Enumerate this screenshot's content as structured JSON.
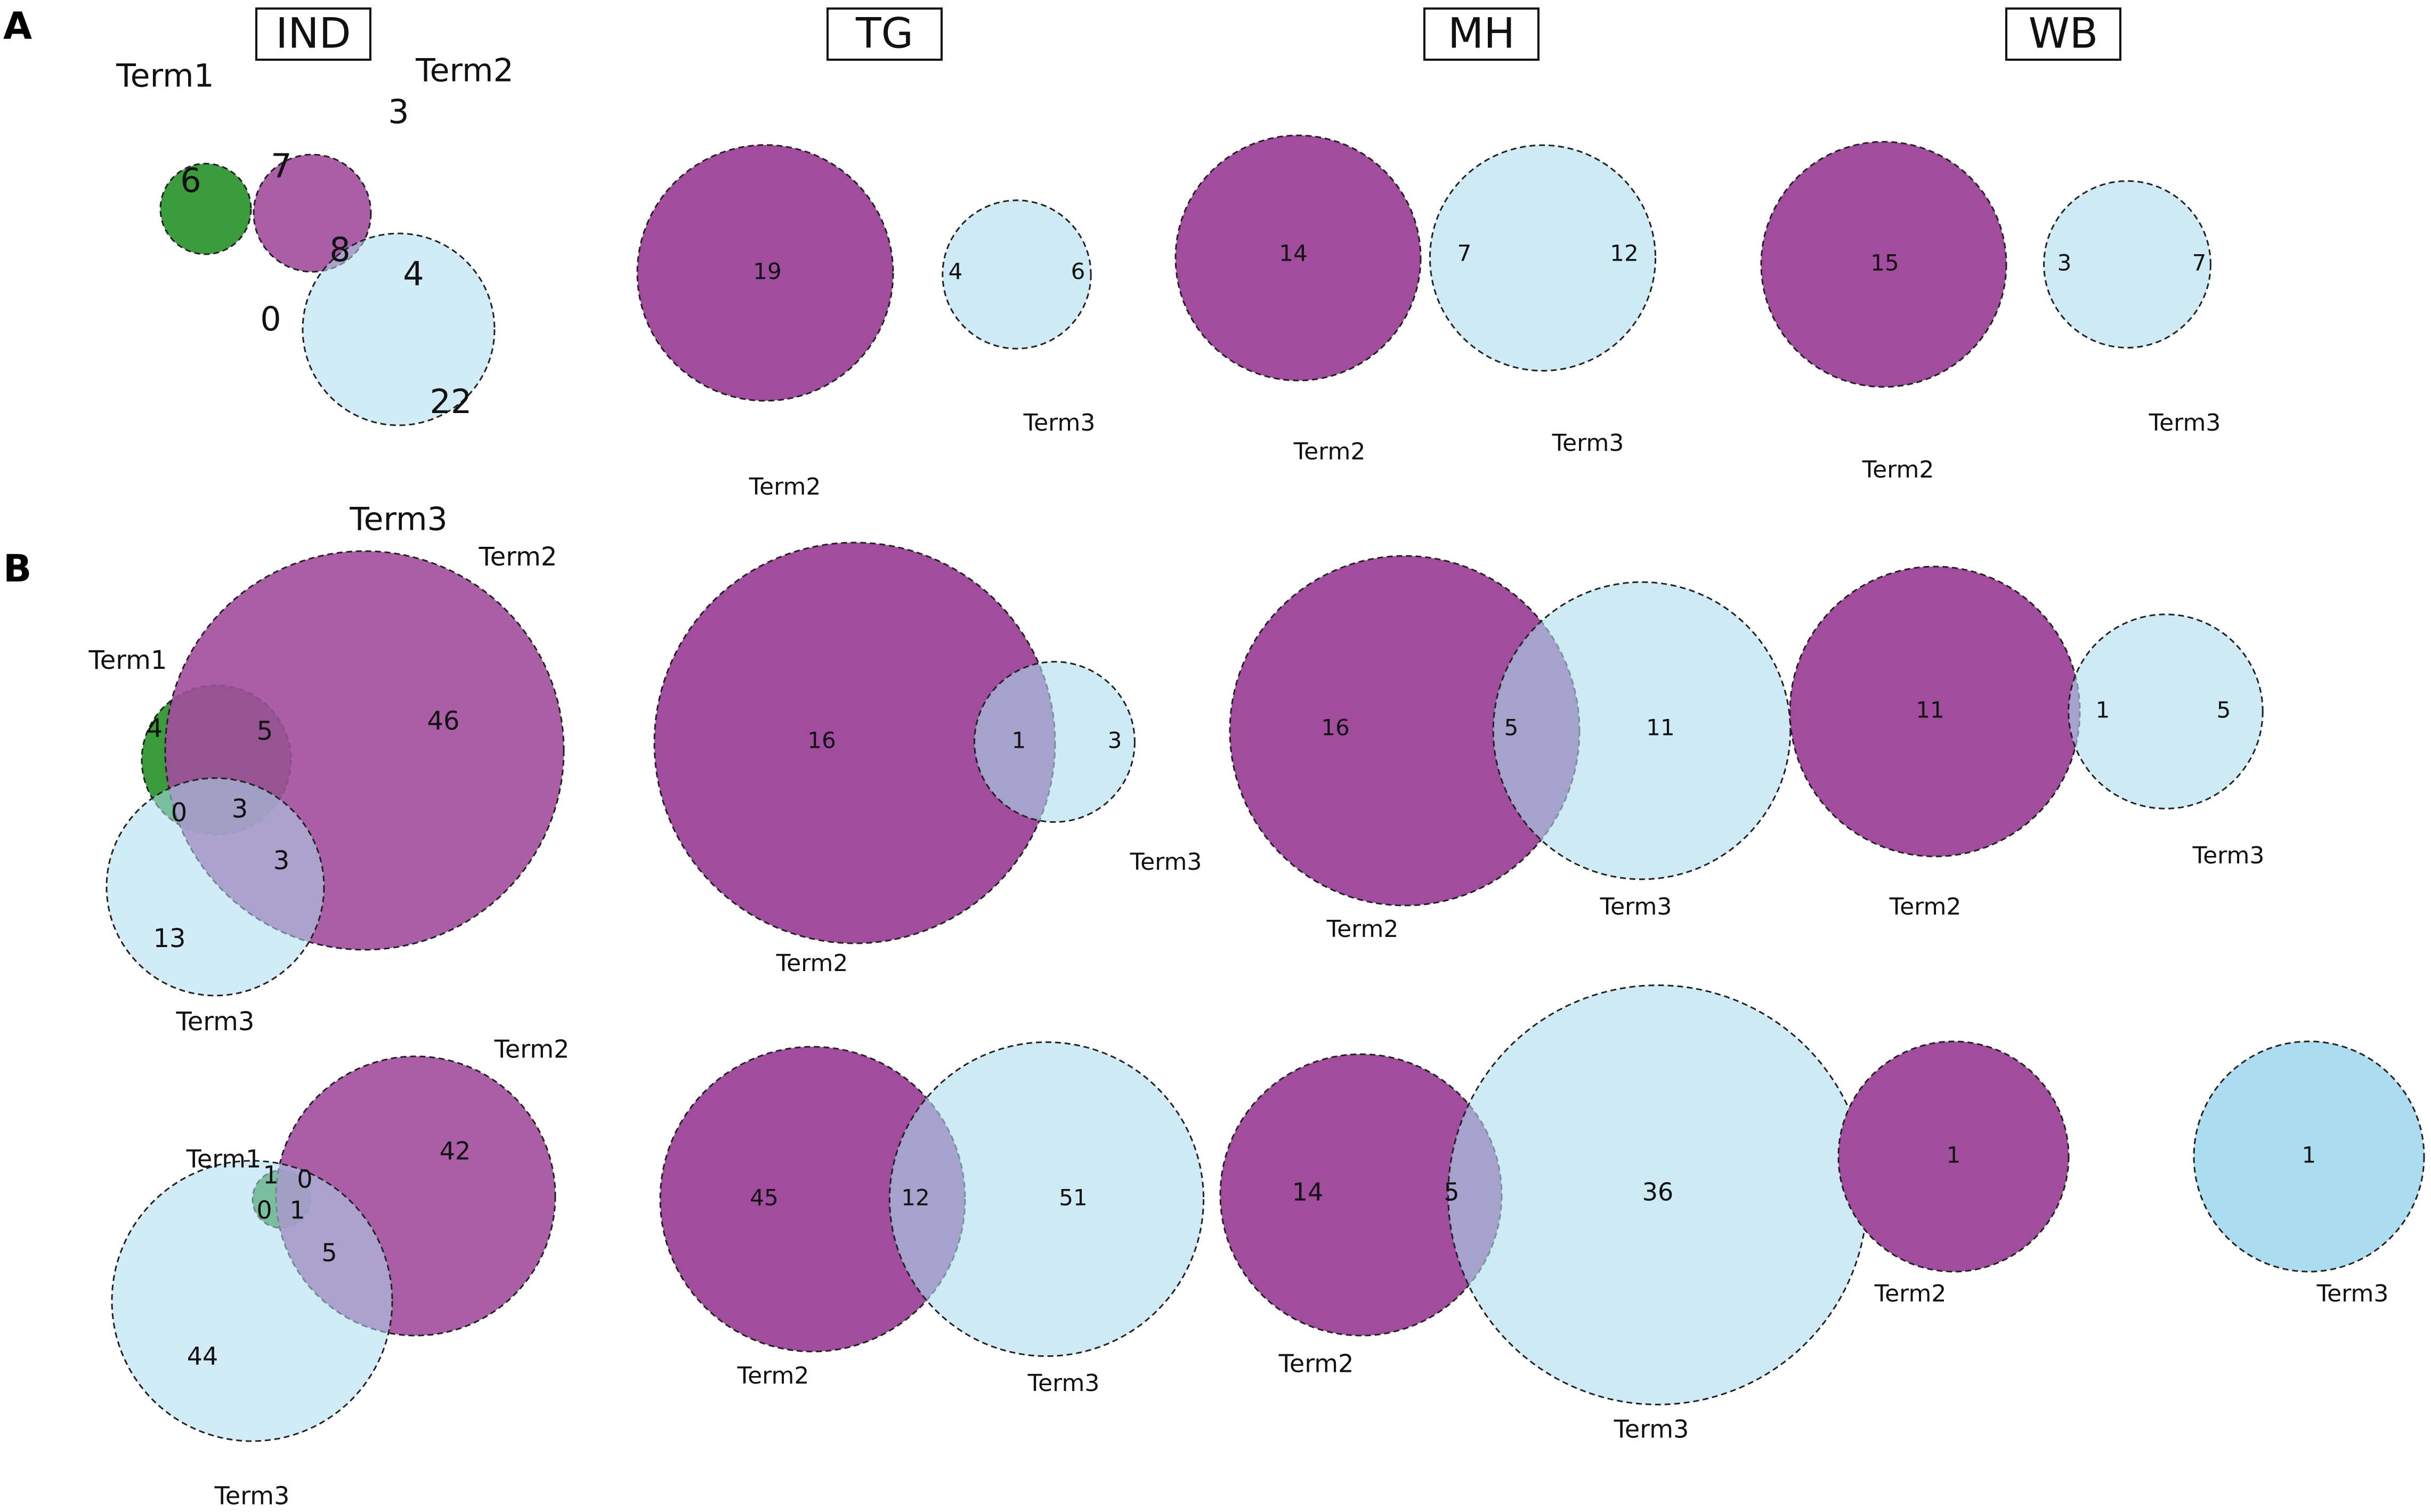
{
  "panel_labels": {
    "a": "A",
    "b": "B"
  },
  "column_headers": [
    "IND",
    "TG",
    "MH",
    "WB"
  ],
  "colors": {
    "term1": "#3c9b3c",
    "term2": "#a14c9c",
    "term3": "#abdcef",
    "t1_t2": "#808080",
    "t2_t3": "#c2aed4",
    "t1_t3": "#a8dba8",
    "t1_t2_t3": "#94aab6"
  },
  "chart_data": [
    {
      "type": "venn",
      "panel": "A",
      "column": "IND",
      "sets": [
        "Term1",
        "Term2",
        "Term3"
      ],
      "regions": {
        "Term1_only": 6,
        "Term2_only": 3,
        "Term3_only": 22,
        "Term1_Term2": 7,
        "Term2_Term3": 4,
        "Term1_Term3": 0,
        "Term1_Term2_Term3": 8
      }
    },
    {
      "type": "venn",
      "panel": "A",
      "column": "TG",
      "sets": [
        "Term2",
        "Term3"
      ],
      "regions": {
        "Term2_only": 19,
        "Term2_Term3": 4,
        "Term3_only": 6
      }
    },
    {
      "type": "venn",
      "panel": "A",
      "column": "MH",
      "sets": [
        "Term2",
        "Term3"
      ],
      "regions": {
        "Term2_only": 14,
        "Term2_Term3": 7,
        "Term3_only": 12
      }
    },
    {
      "type": "venn",
      "panel": "A",
      "column": "WB",
      "sets": [
        "Term2",
        "Term3"
      ],
      "regions": {
        "Term2_only": 15,
        "Term2_Term3": 3,
        "Term3_only": 7
      }
    },
    {
      "type": "venn",
      "panel": "B1",
      "column": "IND",
      "sets": [
        "Term1",
        "Term2",
        "Term3"
      ],
      "regions": {
        "Term1_only": 4,
        "Term2_only": 46,
        "Term3_only": 13,
        "Term1_Term2": 5,
        "Term2_Term3": 3,
        "Term1_Term3": 0,
        "Term1_Term2_Term3": 3
      }
    },
    {
      "type": "venn",
      "panel": "B1",
      "column": "TG",
      "sets": [
        "Term2",
        "Term3"
      ],
      "regions": {
        "Term2_only": 16,
        "Term2_Term3": 1,
        "Term3_only": 3
      }
    },
    {
      "type": "venn",
      "panel": "B1",
      "column": "MH",
      "sets": [
        "Term2",
        "Term3"
      ],
      "regions": {
        "Term2_only": 16,
        "Term2_Term3": 5,
        "Term3_only": 11
      }
    },
    {
      "type": "venn",
      "panel": "B1",
      "column": "WB",
      "sets": [
        "Term2",
        "Term3"
      ],
      "regions": {
        "Term2_only": 11,
        "Term2_Term3": 1,
        "Term3_only": 5
      }
    },
    {
      "type": "venn",
      "panel": "B2",
      "column": "IND",
      "sets": [
        "Term1",
        "Term2",
        "Term3"
      ],
      "regions": {
        "Term1_only": 1,
        "Term2_only": 42,
        "Term3_only": 44,
        "Term1_Term2": 0,
        "Term2_Term3": 5,
        "Term1_Term3": 0,
        "Term1_Term2_Term3": 1
      }
    },
    {
      "type": "venn",
      "panel": "B2",
      "column": "TG",
      "sets": [
        "Term2",
        "Term3"
      ],
      "regions": {
        "Term2_only": 45,
        "Term2_Term3": 12,
        "Term3_only": 51
      }
    },
    {
      "type": "venn",
      "panel": "B2",
      "column": "MH",
      "sets": [
        "Term2",
        "Term3"
      ],
      "regions": {
        "Term2_only": 14,
        "Term2_Term3": 5,
        "Term3_only": 36
      }
    },
    {
      "type": "venn",
      "panel": "B2",
      "column": "WB",
      "sets": [
        "Term2",
        "Term3"
      ],
      "regions": {
        "Term2_only": 1,
        "Term2_Term3": 0,
        "Term3_only": 1
      }
    }
  ]
}
